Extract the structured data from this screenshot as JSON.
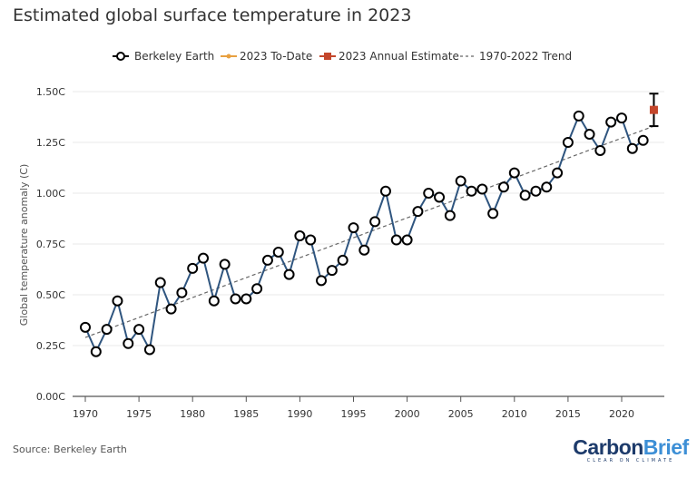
{
  "title": "Estimated global surface temperature in 2023",
  "source": "Source: Berkeley Earth",
  "logo": {
    "part1": "Carbon",
    "part2": "Brief",
    "tagline": "CLEAR ON CLIMATE"
  },
  "colors": {
    "series": "#2f557f",
    "todate": "#e8a040",
    "estimate": "#c4462b",
    "trend": "#666666",
    "grid": "#e8e8e8"
  },
  "chart_data": {
    "type": "line",
    "title": "Estimated global surface temperature in 2023",
    "ylabel": "Global temperature anomaly (C)",
    "xlabel": "",
    "xlim": [
      1969,
      2024
    ],
    "ylim": [
      0,
      1.5
    ],
    "grid": true,
    "legend_placement": "top",
    "xticks": [
      "1970",
      "1975",
      "1980",
      "1985",
      "1990",
      "1995",
      "2000",
      "2005",
      "2010",
      "2015",
      "2020"
    ],
    "yticks": [
      "0.00C",
      "0.25C",
      "0.50C",
      "0.75C",
      "1.00C",
      "1.25C",
      "1.50C"
    ],
    "legend": [
      "Berkeley Earth",
      "2023 To-Date",
      "2023 Annual Estimate",
      "1970-2022 Trend"
    ],
    "series": [
      {
        "name": "Berkeley Earth",
        "x": [
          1970,
          1971,
          1972,
          1973,
          1974,
          1975,
          1976,
          1977,
          1978,
          1979,
          1980,
          1981,
          1982,
          1983,
          1984,
          1985,
          1986,
          1987,
          1988,
          1989,
          1990,
          1991,
          1992,
          1993,
          1994,
          1995,
          1996,
          1997,
          1998,
          1999,
          2000,
          2001,
          2002,
          2003,
          2004,
          2005,
          2006,
          2007,
          2008,
          2009,
          2010,
          2011,
          2012,
          2013,
          2014,
          2015,
          2016,
          2017,
          2018,
          2019,
          2020,
          2021,
          2022
        ],
        "y": [
          0.34,
          0.22,
          0.33,
          0.47,
          0.26,
          0.33,
          0.23,
          0.56,
          0.43,
          0.51,
          0.63,
          0.68,
          0.47,
          0.65,
          0.48,
          0.48,
          0.53,
          0.67,
          0.71,
          0.6,
          0.79,
          0.77,
          0.57,
          0.62,
          0.67,
          0.83,
          0.72,
          0.86,
          1.01,
          0.77,
          0.77,
          0.91,
          1.0,
          0.98,
          0.89,
          1.06,
          1.01,
          1.02,
          0.9,
          1.03,
          1.1,
          0.99,
          1.01,
          1.03,
          1.1,
          1.25,
          1.38,
          1.29,
          1.21,
          1.35,
          1.37,
          1.22,
          1.26
        ]
      },
      {
        "name": "2023 Annual Estimate",
        "x": [
          2023
        ],
        "y": [
          1.41
        ],
        "error_low": [
          1.33
        ],
        "error_high": [
          1.49
        ]
      },
      {
        "name": "1970-2022 Trend",
        "x": [
          1970,
          2023
        ],
        "y": [
          0.29,
          1.33
        ]
      }
    ]
  }
}
